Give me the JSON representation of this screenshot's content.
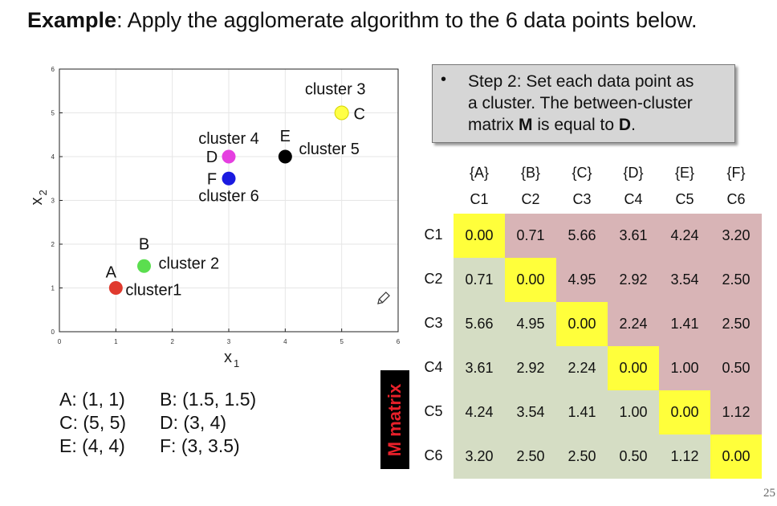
{
  "title": {
    "bold": "Example",
    "rest": ": Apply the agglomerate algorithm to the 6 data points below."
  },
  "chart_data": {
    "type": "scatter",
    "xlabel": "x",
    "xlabel_sub": "1",
    "ylabel": "x",
    "ylabel_sub": "2",
    "xlim": [
      0,
      6
    ],
    "ylim": [
      0,
      6
    ],
    "xticks": [
      "0",
      "1",
      "2",
      "3",
      "4",
      "5",
      "6"
    ],
    "yticks": [
      "0",
      "1",
      "2",
      "3",
      "4",
      "5",
      "6"
    ],
    "grid": true,
    "points": [
      {
        "name": "A",
        "x": 1,
        "y": 1,
        "color": "#e03a2e",
        "cluster": "cluster1"
      },
      {
        "name": "B",
        "x": 1.5,
        "y": 1.5,
        "color": "#5bde4f",
        "cluster": "cluster 2"
      },
      {
        "name": "C",
        "x": 5,
        "y": 5,
        "color": "#ffff45",
        "cluster": "cluster 3"
      },
      {
        "name": "D",
        "x": 3,
        "y": 4,
        "color": "#e53fe0",
        "cluster": "cluster 4"
      },
      {
        "name": "E",
        "x": 4,
        "y": 4,
        "color": "#000000",
        "cluster": "cluster 5"
      },
      {
        "name": "F",
        "x": 3,
        "y": 3.5,
        "color": "#1a1ae0",
        "cluster": "cluster 6"
      }
    ]
  },
  "coordinates": [
    [
      "A: (1, 1)",
      "B: (1.5, 1.5)"
    ],
    [
      "C: (5, 5)",
      "D: (3, 4)"
    ],
    [
      "E: (4, 4)",
      "F: (3, 3.5)"
    ]
  ],
  "step": {
    "bullet": "•",
    "line1": "Step 2: Set each data point as",
    "line2": "a cluster. The between-cluster",
    "line3_pre": "matrix ",
    "line3_m": "M",
    "line3_mid": " is equal to ",
    "line3_d": "D",
    "line3_end": "."
  },
  "matrix": {
    "label": "M matrix",
    "col_sets": [
      "{A}",
      "{B}",
      "{C}",
      "{D}",
      "{E}",
      "{F}"
    ],
    "col_names": [
      "C1",
      "C2",
      "C3",
      "C4",
      "C5",
      "C6"
    ],
    "row_names": [
      "C1",
      "C2",
      "C3",
      "C4",
      "C5",
      "C6"
    ],
    "values": [
      [
        "0.00",
        "0.71",
        "5.66",
        "3.61",
        "4.24",
        "3.20"
      ],
      [
        "0.71",
        "0.00",
        "4.95",
        "2.92",
        "3.54",
        "2.50"
      ],
      [
        "5.66",
        "4.95",
        "0.00",
        "2.24",
        "1.41",
        "2.50"
      ],
      [
        "3.61",
        "2.92",
        "2.24",
        "0.00",
        "1.00",
        "0.50"
      ],
      [
        "4.24",
        "3.54",
        "1.41",
        "1.00",
        "0.00",
        "1.12"
      ],
      [
        "3.20",
        "2.50",
        "2.50",
        "0.50",
        "1.12",
        "0.00"
      ]
    ]
  },
  "page_number": "25"
}
